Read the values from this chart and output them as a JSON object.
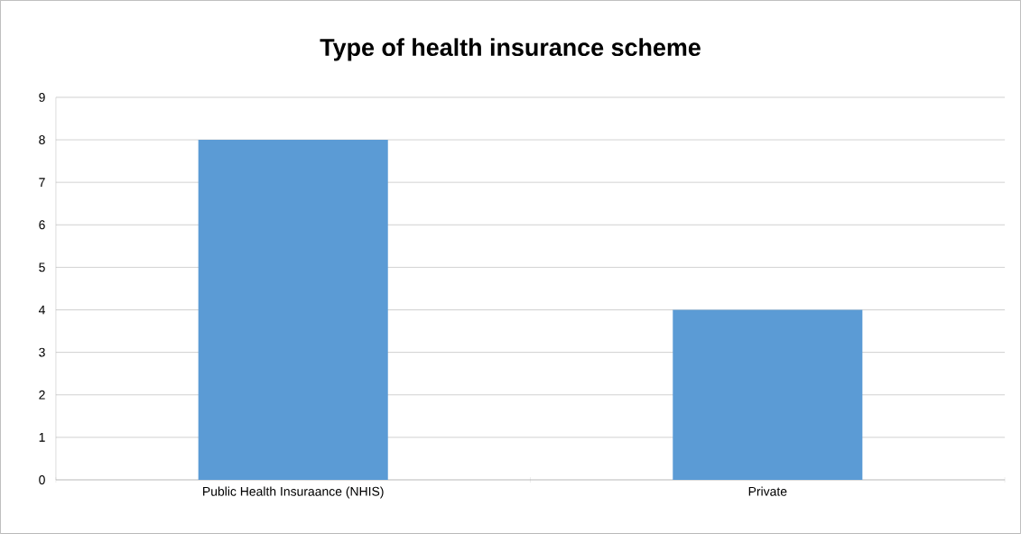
{
  "chart_data": {
    "type": "bar",
    "title": "Type of health insurance scheme",
    "categories": [
      "Public Health Insuraance (NHIS)",
      "Private"
    ],
    "values": [
      8,
      4
    ],
    "color": "#5b9bd5",
    "ylim": [
      0,
      9
    ],
    "yticks": [
      0,
      1,
      2,
      3,
      4,
      5,
      6,
      7,
      8,
      9
    ],
    "grid": "y"
  }
}
